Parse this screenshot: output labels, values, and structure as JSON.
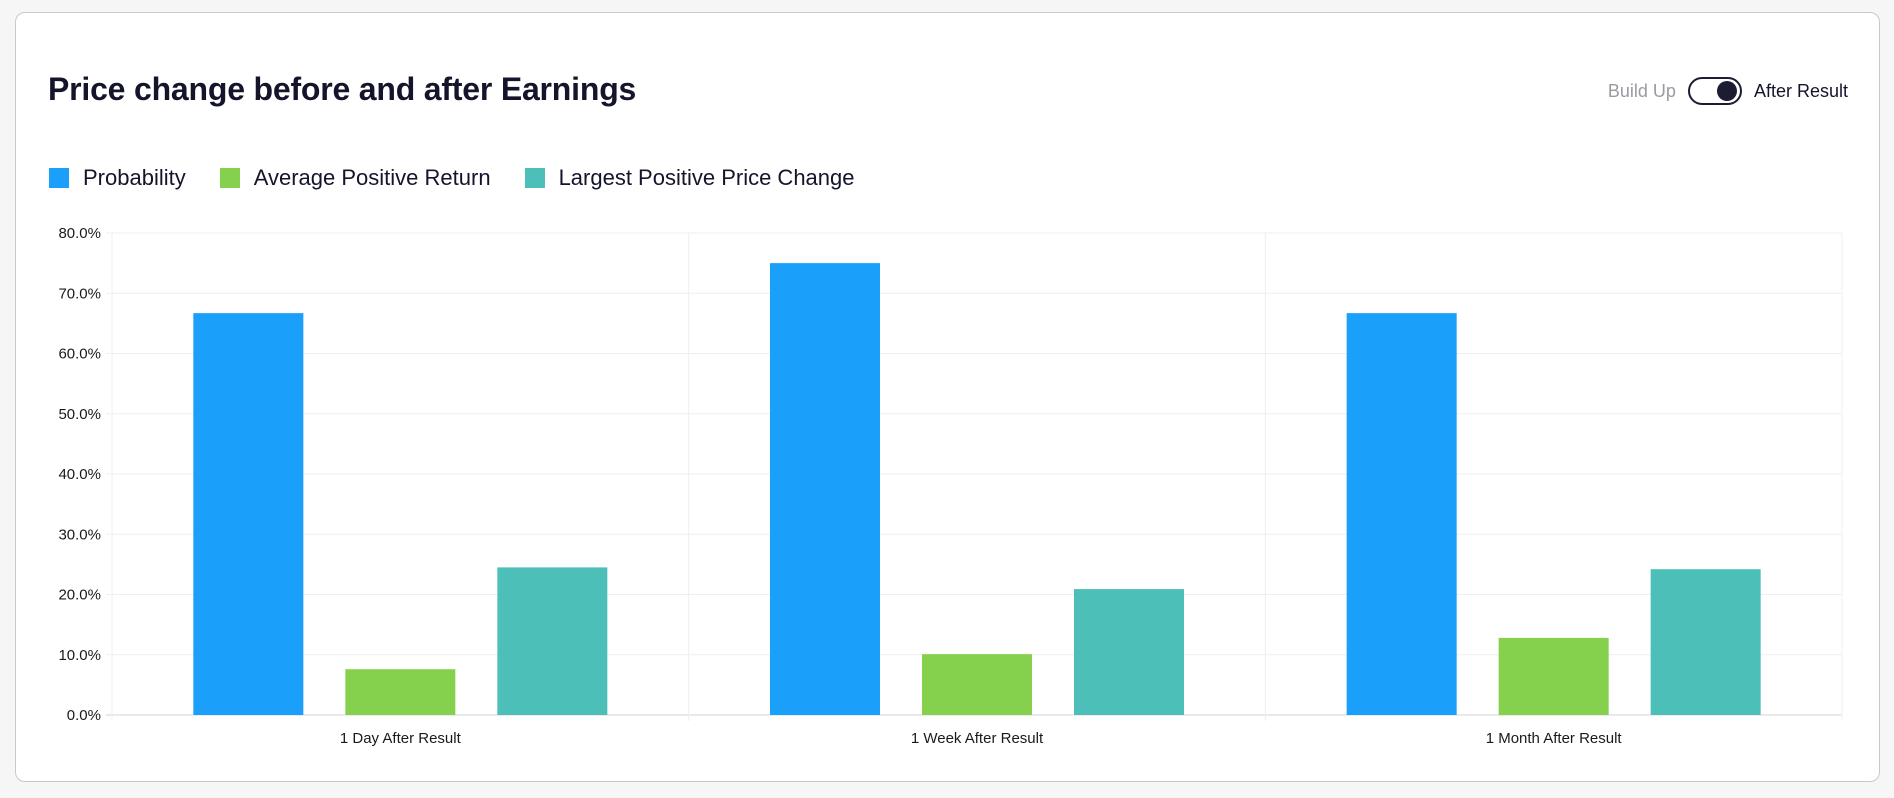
{
  "title": "Price change before and after Earnings",
  "toggle": {
    "off_label": "Build Up",
    "on_label": "After Result",
    "state": "After Result"
  },
  "chart_data": {
    "type": "bar",
    "title": "Price change before and after Earnings",
    "xlabel": "",
    "ylabel": "",
    "ylim": [
      0,
      80
    ],
    "yticks": [
      "0.0%",
      "10.0%",
      "20.0%",
      "30.0%",
      "40.0%",
      "50.0%",
      "60.0%",
      "70.0%",
      "80.0%"
    ],
    "grid": true,
    "legend_position": "top-left",
    "categories": [
      "1 Day After Result",
      "1 Week After Result",
      "1 Month After Result"
    ],
    "series": [
      {
        "name": "Probability",
        "color": "#1a9ffb",
        "values": [
          66.7,
          75.0,
          66.7
        ]
      },
      {
        "name": "Average Positive Return",
        "color": "#85d04c",
        "values": [
          7.6,
          10.1,
          12.8
        ]
      },
      {
        "name": "Largest Positive Price Change",
        "color": "#4cc0b8",
        "values": [
          24.5,
          20.9,
          24.2
        ]
      }
    ]
  }
}
